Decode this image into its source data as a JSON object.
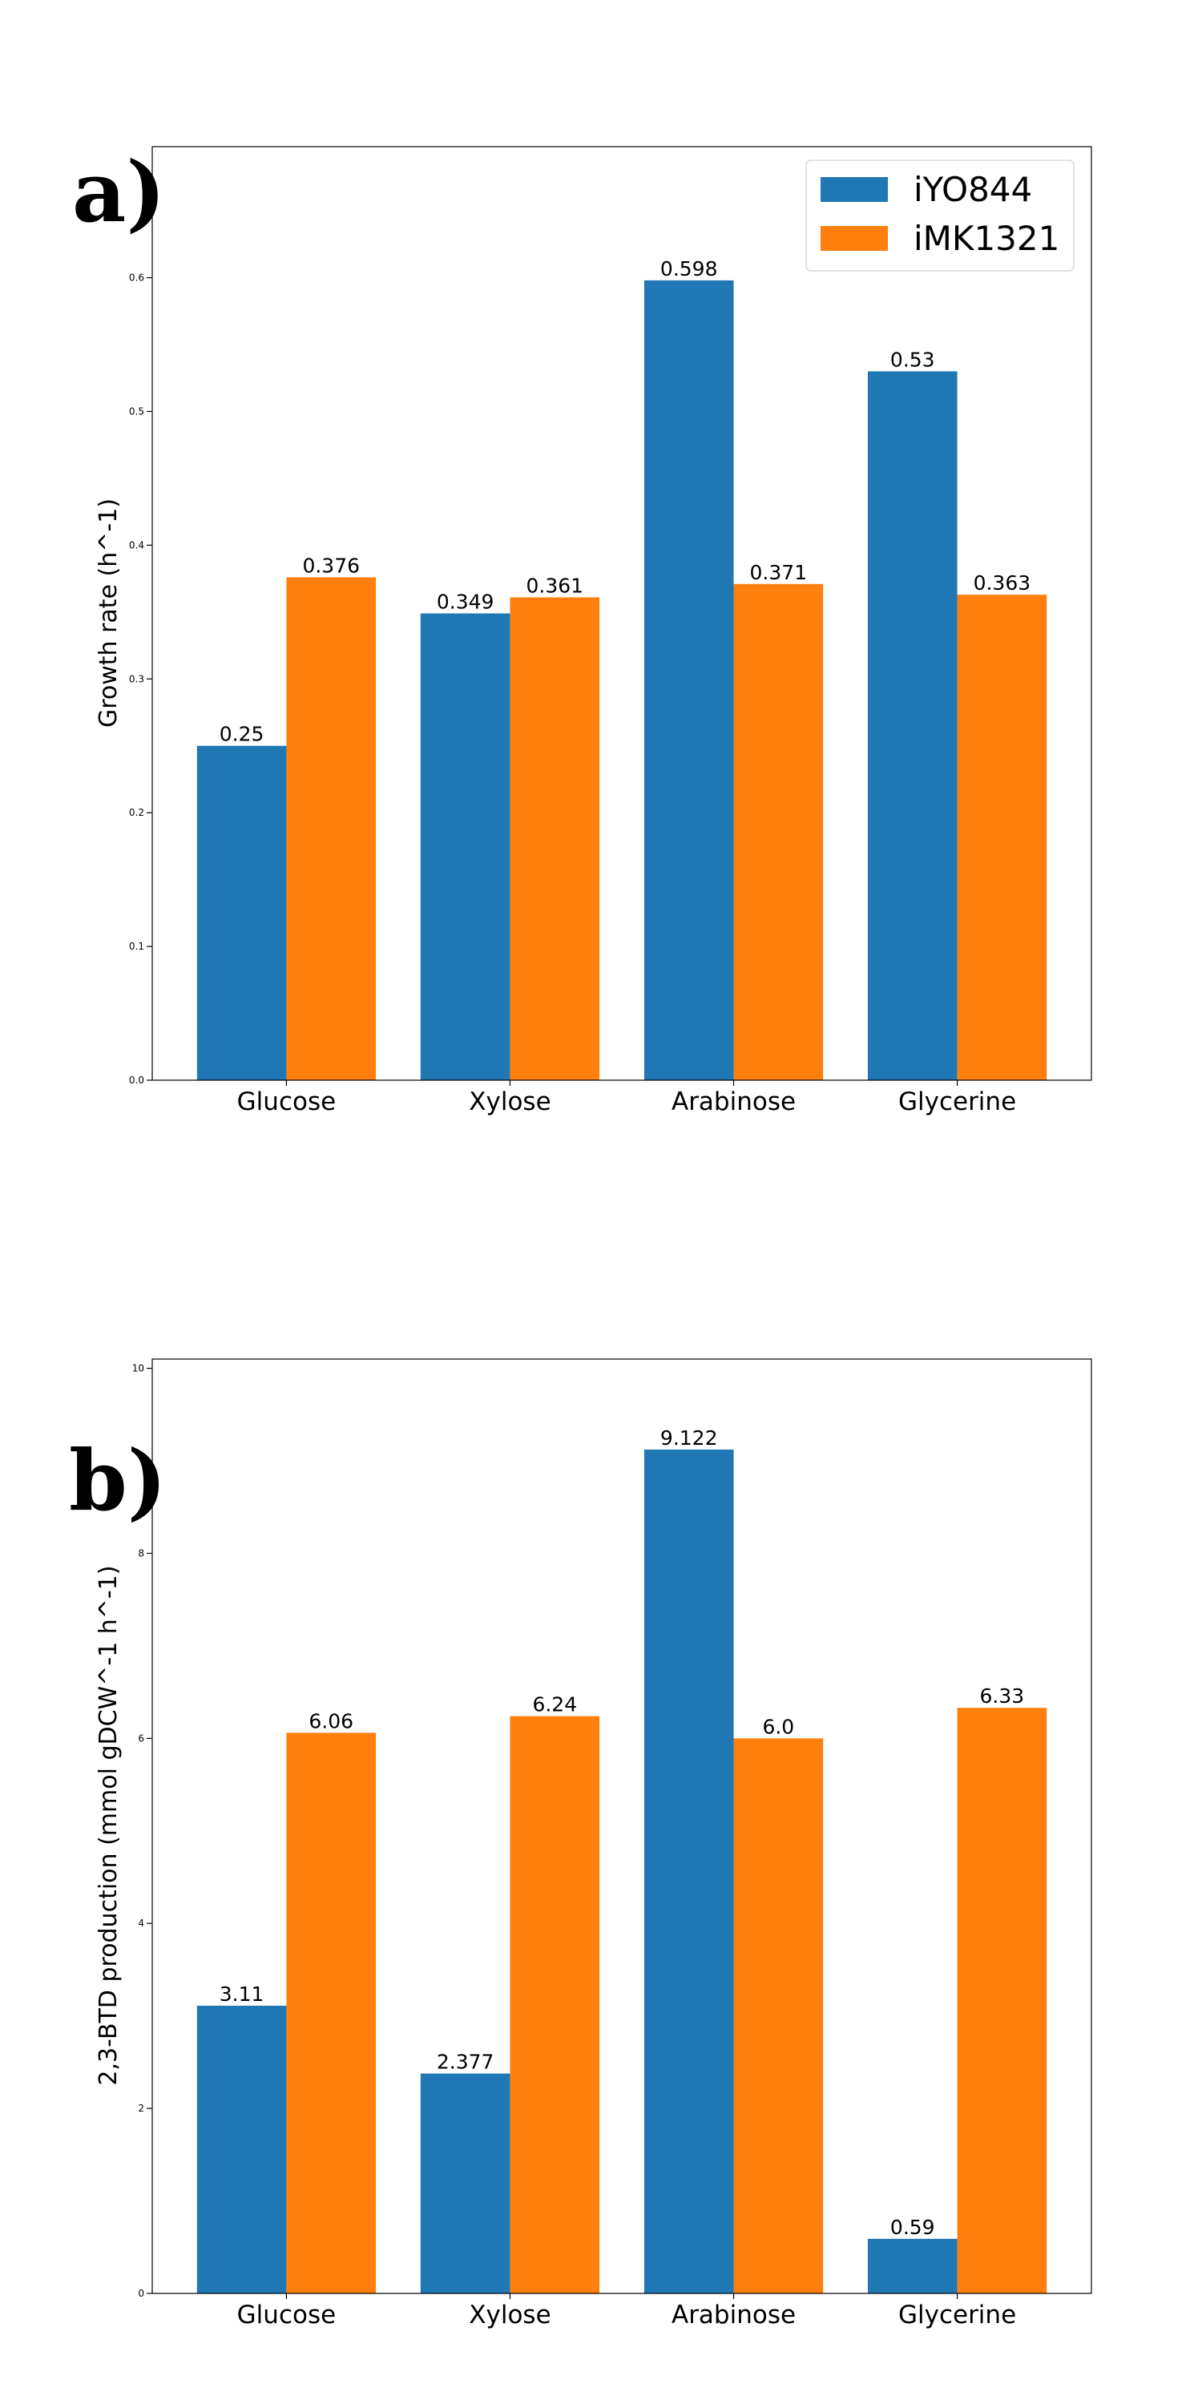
{
  "chart_data": [
    {
      "type": "bar",
      "panel_label": "a)",
      "categories": [
        "Glucose",
        "Xylose",
        "Arabinose",
        "Glycerine"
      ],
      "series": [
        {
          "name": "iYO844",
          "color": "#1f77b4",
          "values": [
            0.25,
            0.349,
            0.598,
            0.53
          ],
          "labels": [
            "0.25",
            "0.349",
            "0.598",
            "0.53"
          ]
        },
        {
          "name": "iMK1321",
          "color": "#ff7f0e",
          "values": [
            0.376,
            0.361,
            0.371,
            0.363
          ],
          "labels": [
            "0.376",
            "0.361",
            "0.371",
            "0.363"
          ]
        }
      ],
      "ylabel": "Growth rate (h^-1)",
      "ylim": [
        0,
        0.698
      ],
      "yticks": [
        "0.0",
        "0.1",
        "0.2",
        "0.3",
        "0.4",
        "0.5",
        "0.6"
      ],
      "legend": "top-right",
      "grid": false
    },
    {
      "type": "bar",
      "panel_label": "b)",
      "categories": [
        "Glucose",
        "Xylose",
        "Arabinose",
        "Glycerine"
      ],
      "series": [
        {
          "name": "iYO844",
          "color": "#1f77b4",
          "values": [
            3.11,
            2.377,
            9.122,
            0.59
          ],
          "labels": [
            "3.11",
            "2.377",
            "9.122",
            "0.59"
          ]
        },
        {
          "name": "iMK1321",
          "color": "#ff7f0e",
          "values": [
            6.06,
            6.24,
            6.0,
            6.33
          ],
          "labels": [
            "6.06",
            "6.24",
            "6.0",
            "6.33"
          ]
        }
      ],
      "ylabel": "2,3-BTD production (mmol gDCW^-1 h^-1)",
      "ylim": [
        0,
        10.1
      ],
      "yticks": [
        "0",
        "2",
        "4",
        "6",
        "8",
        "10"
      ],
      "legend": "none",
      "grid": false
    }
  ]
}
